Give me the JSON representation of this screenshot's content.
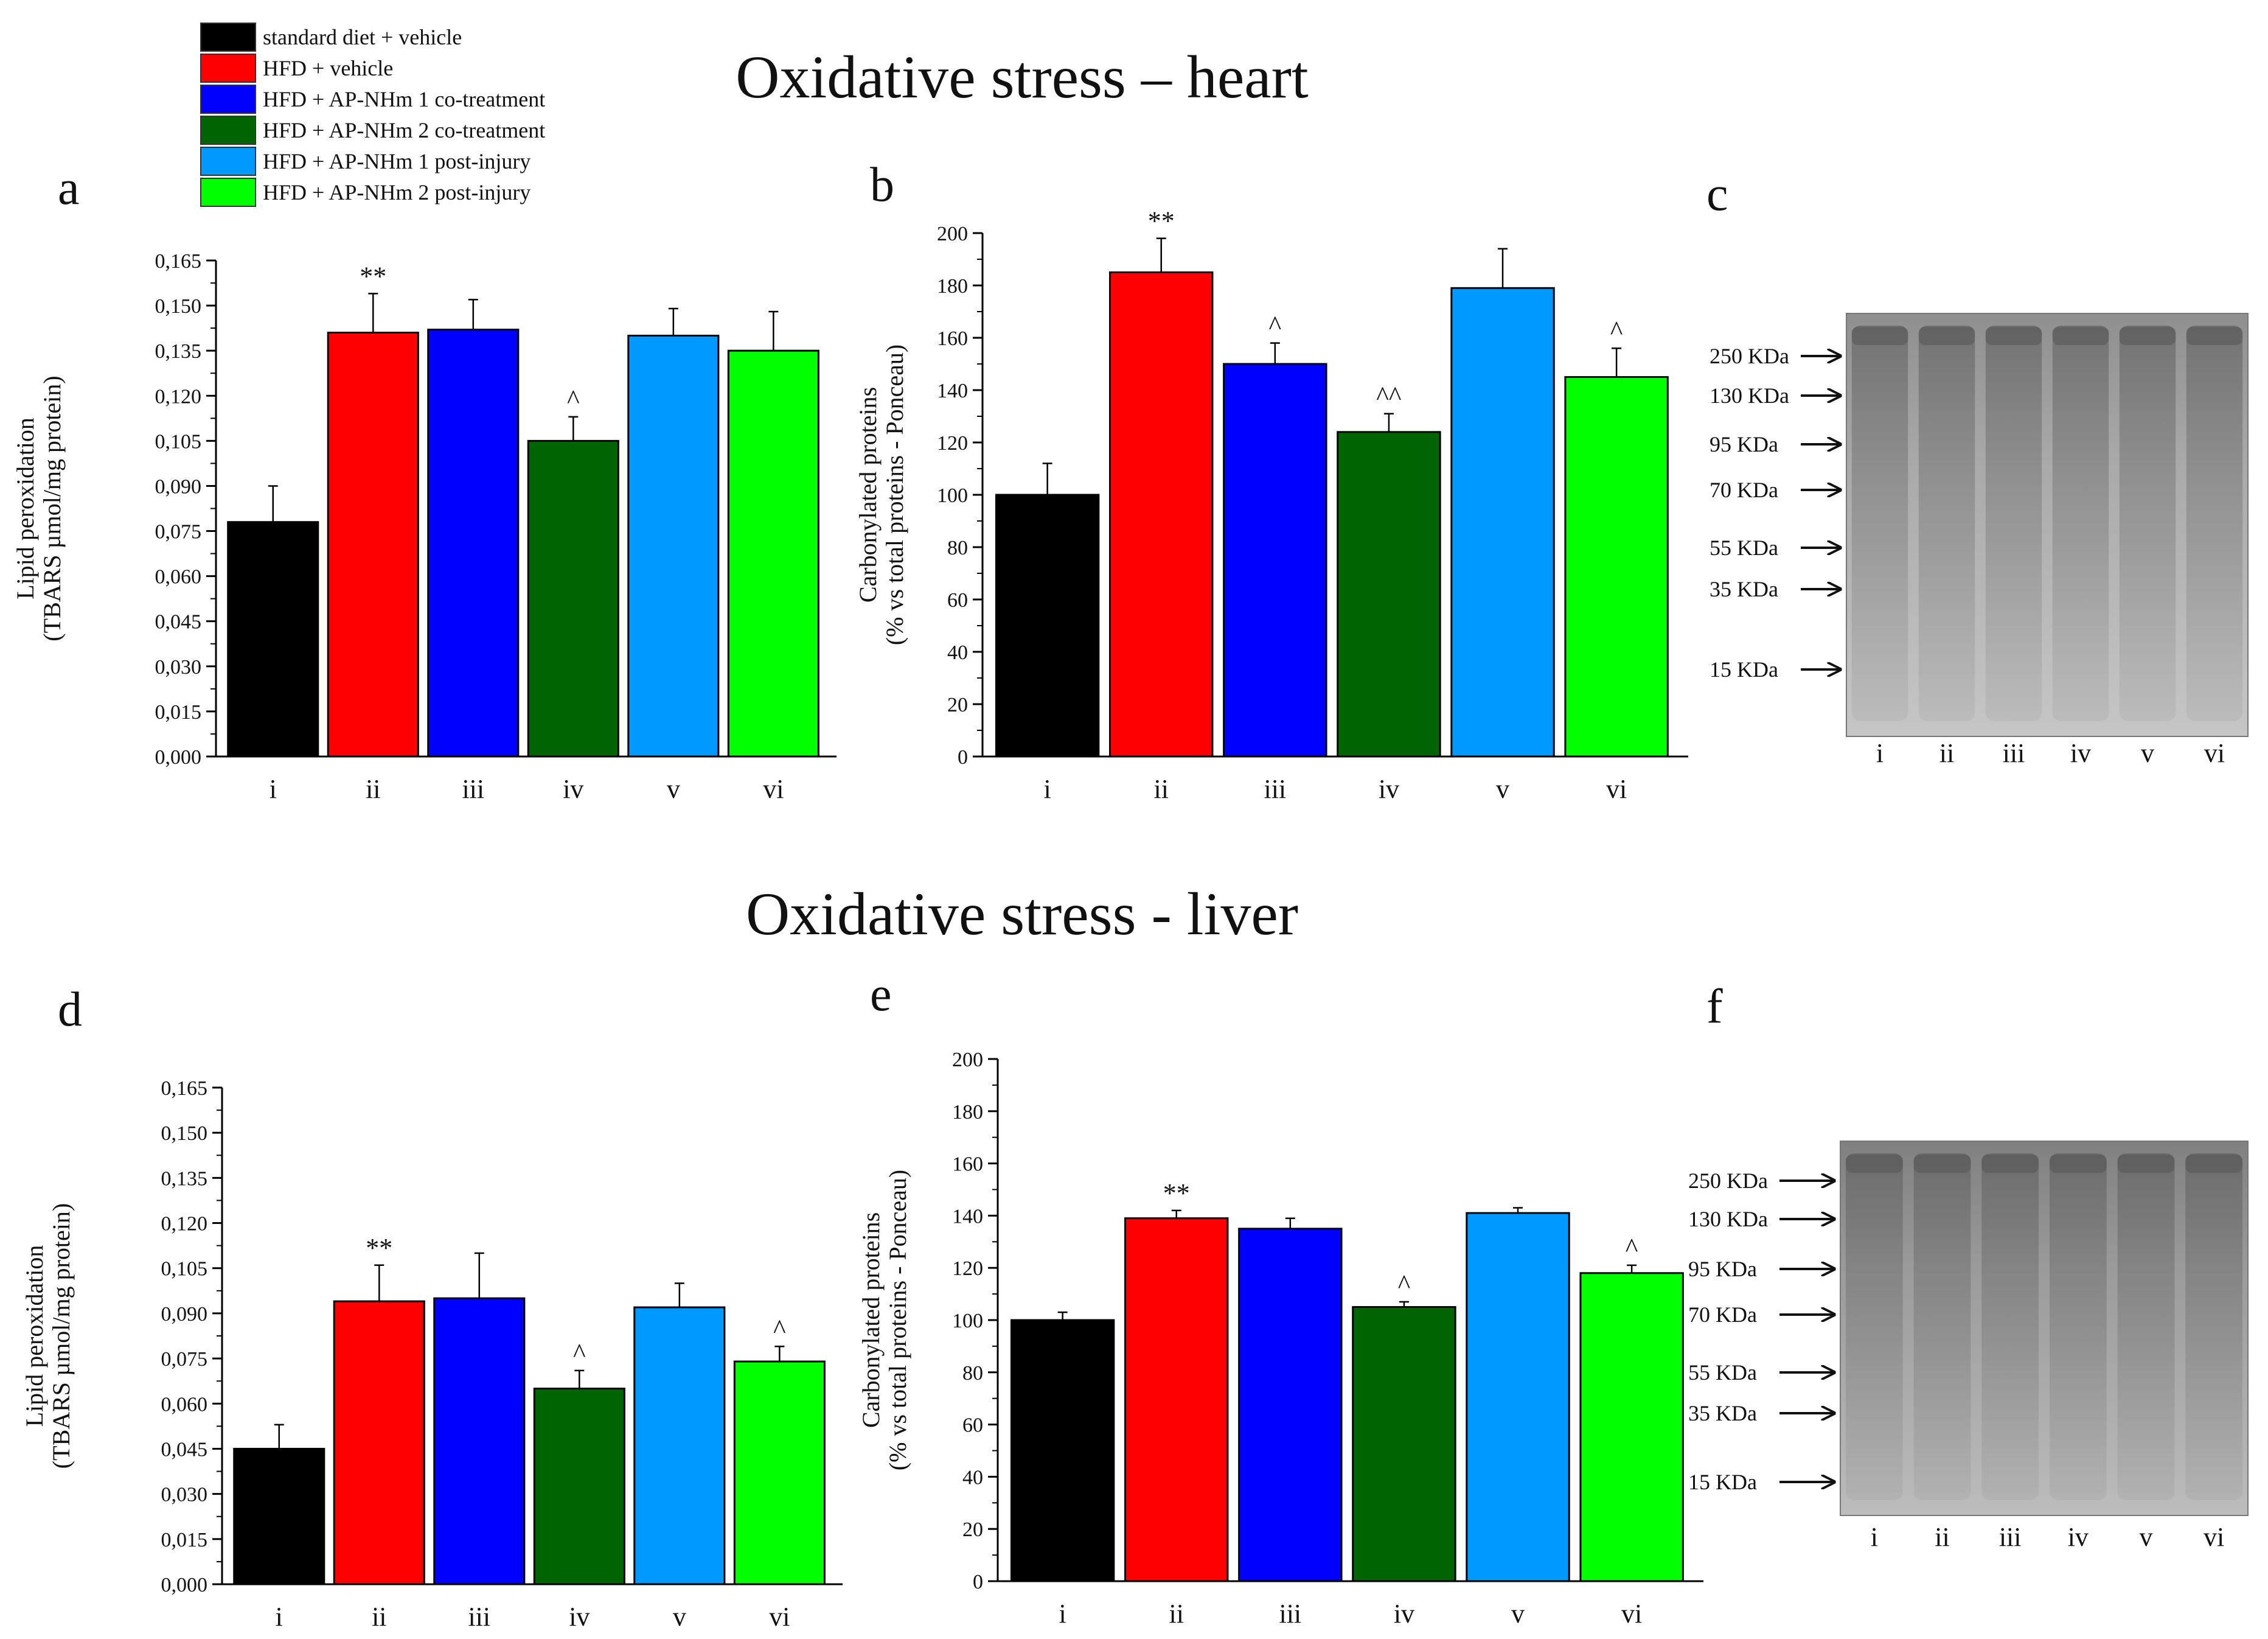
{
  "figure": {
    "title_heart": "Oxidative stress – heart",
    "title_liver": "Oxidative stress - liver",
    "panel_letters": [
      "a",
      "b",
      "c",
      "d",
      "e",
      "f"
    ]
  },
  "legend": {
    "placement": "top-left",
    "entries": [
      {
        "label": "standard diet + vehicle",
        "color": "#000000"
      },
      {
        "label": "HFD + vehicle",
        "color": "#ff0000"
      },
      {
        "label": "HFD + AP-NHm 1 co-treatment",
        "color": "#0000ff"
      },
      {
        "label": "HFD + AP-NHm 2 co-treatment",
        "color": "#006400"
      },
      {
        "label": "HFD + AP-NHm 1 post-injury",
        "color": "#0099ff"
      },
      {
        "label": "HFD + AP-NHm 2 post-injury",
        "color": "#00ff00"
      }
    ]
  },
  "chart_data": [
    {
      "panel": "a",
      "type": "bar",
      "categories": [
        "i",
        "ii",
        "iii",
        "iv",
        "v",
        "vi"
      ],
      "values": [
        0.078,
        0.141,
        0.142,
        0.105,
        0.14,
        0.135
      ],
      "errors": [
        0.012,
        0.013,
        0.01,
        0.008,
        0.009,
        0.013
      ],
      "annotations": [
        "",
        "**",
        "",
        "^",
        "",
        ""
      ],
      "colors": [
        "#000000",
        "#ff0000",
        "#0000ff",
        "#006400",
        "#0099ff",
        "#00ff00"
      ],
      "ylabel_line1": "Lipid peroxidation",
      "ylabel_line2": "(TBARS µmol/mg protein)",
      "ylim": [
        0,
        0.165
      ],
      "yticks": [
        0,
        0.015,
        0.03,
        0.045,
        0.06,
        0.075,
        0.09,
        0.105,
        0.12,
        0.135,
        0.15,
        0.165
      ],
      "yticklabels": [
        "0,000",
        "0,015",
        "0,030",
        "0,045",
        "0,060",
        "0,075",
        "0,090",
        "0,105",
        "0,120",
        "0,135",
        "0,150",
        "0,165"
      ]
    },
    {
      "panel": "b",
      "type": "bar",
      "categories": [
        "i",
        "ii",
        "iii",
        "iv",
        "v",
        "vi"
      ],
      "values": [
        100,
        185,
        150,
        124,
        179,
        145
      ],
      "errors": [
        12,
        13,
        8,
        7,
        15,
        11
      ],
      "annotations": [
        "",
        "**",
        "^",
        "^^",
        "",
        "^"
      ],
      "colors": [
        "#000000",
        "#ff0000",
        "#0000ff",
        "#006400",
        "#0099ff",
        "#00ff00"
      ],
      "ylabel_line1": "Carbonylated proteins",
      "ylabel_line2": "(% vs total proteins - Ponceau)",
      "ylim": [
        0,
        200
      ],
      "yticks": [
        0,
        20,
        40,
        60,
        80,
        100,
        120,
        140,
        160,
        180,
        200
      ],
      "yticklabels": [
        "0",
        "20",
        "40",
        "60",
        "80",
        "100",
        "120",
        "140",
        "160",
        "180",
        "200"
      ]
    },
    {
      "panel": "d",
      "type": "bar",
      "categories": [
        "i",
        "ii",
        "iii",
        "iv",
        "v",
        "vi"
      ],
      "values": [
        0.045,
        0.094,
        0.095,
        0.065,
        0.092,
        0.074
      ],
      "errors": [
        0.008,
        0.012,
        0.015,
        0.006,
        0.008,
        0.005
      ],
      "annotations": [
        "",
        "**",
        "",
        "^",
        "",
        "^"
      ],
      "colors": [
        "#000000",
        "#ff0000",
        "#0000ff",
        "#006400",
        "#0099ff",
        "#00ff00"
      ],
      "ylabel_line1": "Lipid peroxidation",
      "ylabel_line2": "(TBARS µmol/mg protein)",
      "ylim": [
        0,
        0.165
      ],
      "yticks": [
        0,
        0.015,
        0.03,
        0.045,
        0.06,
        0.075,
        0.09,
        0.105,
        0.12,
        0.135,
        0.15,
        0.165
      ],
      "yticklabels": [
        "0,000",
        "0,015",
        "0,030",
        "0,045",
        "0,060",
        "0,075",
        "0,090",
        "0,105",
        "0,120",
        "0,135",
        "0,150",
        "0,165"
      ]
    },
    {
      "panel": "e",
      "type": "bar",
      "categories": [
        "i",
        "ii",
        "iii",
        "iv",
        "v",
        "vi"
      ],
      "values": [
        100,
        139,
        135,
        105,
        141,
        118
      ],
      "errors": [
        3,
        3,
        4,
        2,
        2,
        3
      ],
      "annotations": [
        "",
        "**",
        "",
        "^",
        "",
        "^"
      ],
      "colors": [
        "#000000",
        "#ff0000",
        "#0000ff",
        "#006400",
        "#0099ff",
        "#00ff00"
      ],
      "ylabel_line1": "Carbonylated proteins",
      "ylabel_line2": "(% vs total proteins - Ponceau)",
      "ylim": [
        0,
        200
      ],
      "yticks": [
        0,
        20,
        40,
        60,
        80,
        100,
        120,
        140,
        160,
        180,
        200
      ],
      "yticklabels": [
        "0",
        "20",
        "40",
        "60",
        "80",
        "100",
        "120",
        "140",
        "160",
        "180",
        "200"
      ]
    }
  ],
  "blots": [
    {
      "panel": "c",
      "markers": [
        "250 KDa",
        "130 KDa",
        "95 KDa",
        "70 KDa",
        "55 KDa",
        "35 KDa",
        "15 KDa"
      ],
      "lanes": [
        "i",
        "ii",
        "iii",
        "iv",
        "v",
        "vi"
      ]
    },
    {
      "panel": "f",
      "markers": [
        "250 KDa",
        "130 KDa",
        "95 KDa",
        "70 KDa",
        "55 KDa",
        "35 KDa",
        "15 KDa"
      ],
      "lanes": [
        "i",
        "ii",
        "iii",
        "iv",
        "v",
        "vi"
      ]
    }
  ]
}
